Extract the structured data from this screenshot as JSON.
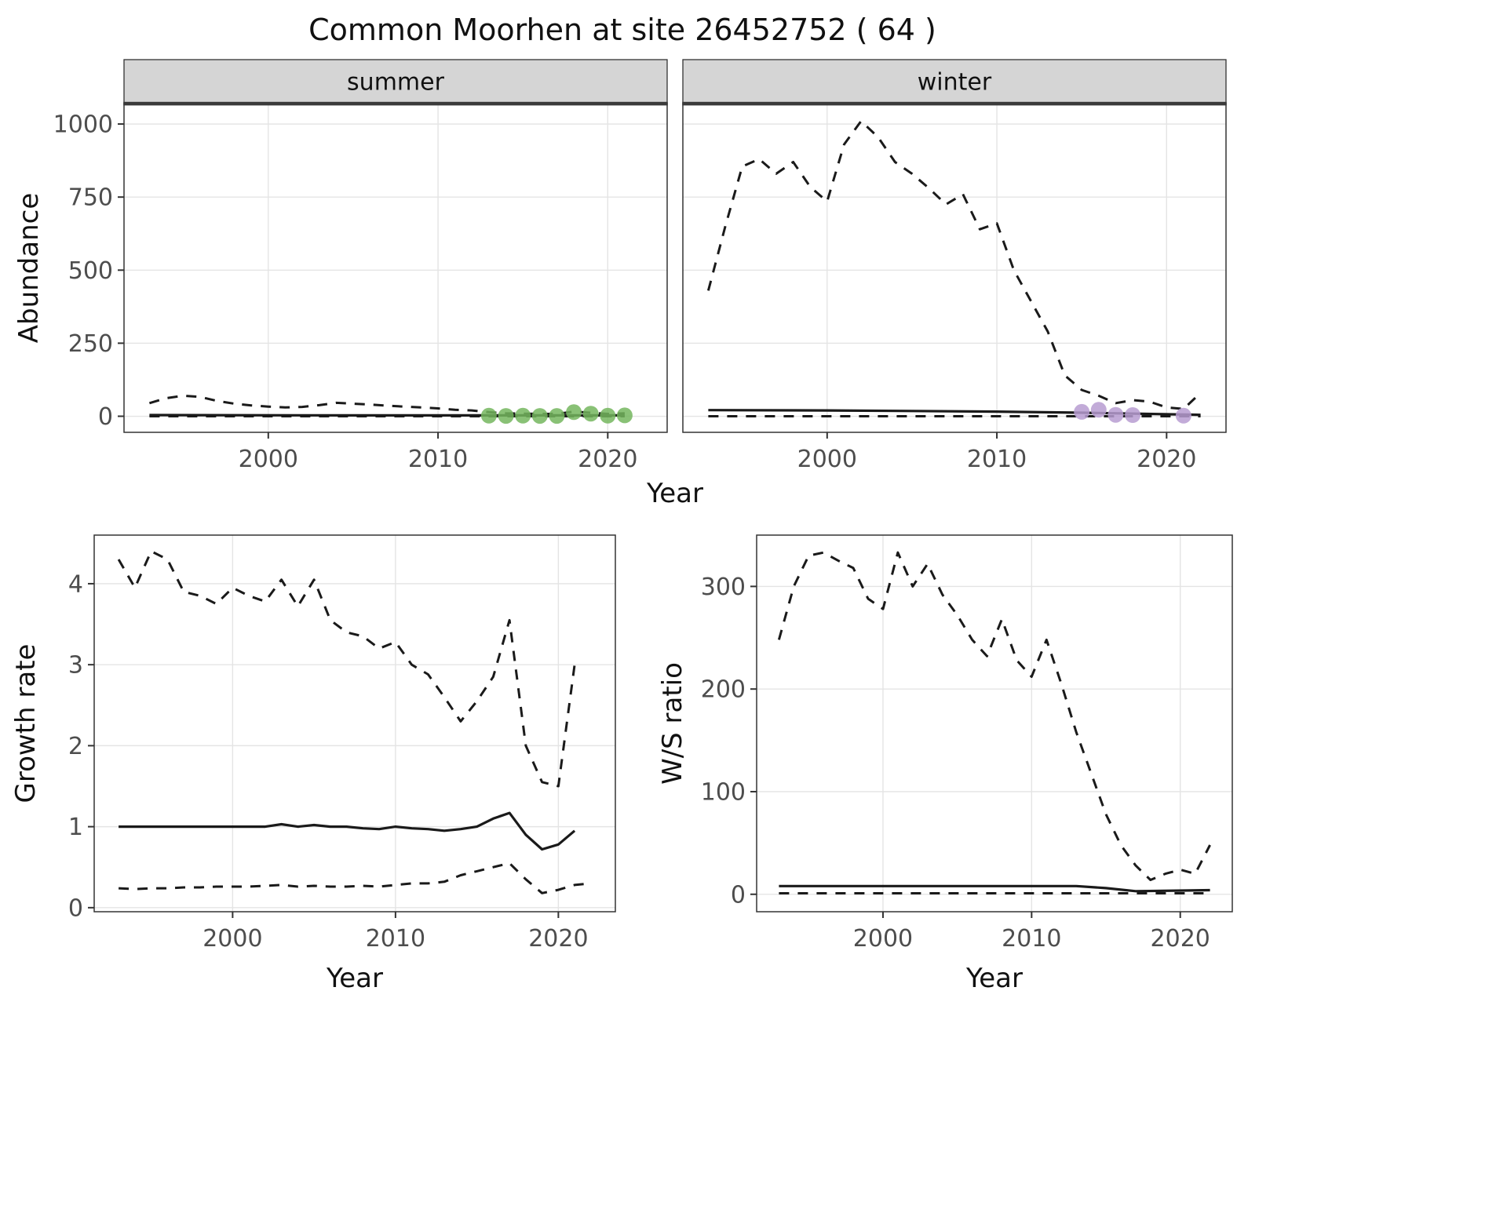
{
  "title": "Common Moorhen at site 26452752 ( 64 )",
  "colors": {
    "summer_points": "#74b65e",
    "winter_points": "#b79cd1",
    "line": "#1a1a1a",
    "strip_fill": "#d5d5d5",
    "strip_bar": "#3a3a3a",
    "grid": "#e4e4e4"
  },
  "chart_data": [
    {
      "id": "abundance",
      "type": "line",
      "xlabel": "Year",
      "ylabel": "Abundance",
      "x_domain": [
        1991.5,
        2023.5
      ],
      "y_domain": [
        -55,
        1070
      ],
      "x_ticks": [
        2000,
        2010,
        2020
      ],
      "y_ticks": [
        0,
        250,
        500,
        750,
        1000
      ],
      "grid": true,
      "legend": "none",
      "facets": [
        {
          "label": "summer",
          "series": [
            {
              "name": "upper-ci",
              "style": "dashed",
              "x": [
                1993,
                1994,
                1995,
                1996,
                1997,
                1998,
                1999,
                2000,
                2001,
                2002,
                2003,
                2004,
                2005,
                2006,
                2007,
                2008,
                2009,
                2010,
                2011,
                2012,
                2013,
                2014,
                2015,
                2016,
                2017,
                2018,
                2019,
                2020,
                2021
              ],
              "y": [
                45,
                62,
                70,
                66,
                52,
                43,
                37,
                33,
                30,
                32,
                38,
                46,
                43,
                40,
                36,
                33,
                30,
                27,
                22,
                20,
                14,
                10,
                9,
                8,
                8,
                16,
                12,
                8,
                10
              ]
            },
            {
              "name": "estimate",
              "style": "solid",
              "x": [
                1993,
                2005,
                2013,
                2021
              ],
              "y": [
                4,
                3,
                3,
                3
              ]
            },
            {
              "name": "lower-ci",
              "style": "dashed",
              "x": [
                1993,
                2021
              ],
              "y": [
                0,
                0
              ]
            },
            {
              "name": "observations",
              "style": "points",
              "color": "#74b65e",
              "x": [
                2013,
                2014,
                2015,
                2016,
                2017,
                2018,
                2019,
                2020,
                2021
              ],
              "y": [
                2,
                1,
                2,
                1,
                1,
                14,
                9,
                2,
                3
              ]
            }
          ]
        },
        {
          "label": "winter",
          "series": [
            {
              "name": "upper-ci",
              "style": "dashed",
              "x": [
                1993,
                1994,
                1995,
                1996,
                1997,
                1998,
                1999,
                2000,
                2001,
                2002,
                2003,
                2004,
                2005,
                2006,
                2007,
                2008,
                2009,
                2010,
                2011,
                2012,
                2013,
                2014,
                2015,
                2016,
                2017,
                2018,
                2019,
                2020,
                2021,
                2022
              ],
              "y": [
                430,
                650,
                855,
                880,
                830,
                870,
                785,
                735,
                930,
                1010,
                955,
                870,
                830,
                780,
                725,
                760,
                640,
                660,
                500,
                395,
                290,
                140,
                90,
                70,
                45,
                55,
                50,
                30,
                25,
                80
              ]
            },
            {
              "name": "estimate",
              "style": "solid",
              "x": [
                1993,
                2000,
                2005,
                2010,
                2015,
                2022
              ],
              "y": [
                21,
                20,
                18,
                16,
                12,
                5
              ]
            },
            {
              "name": "lower-ci",
              "style": "dashed",
              "x": [
                1993,
                2022
              ],
              "y": [
                0,
                0
              ]
            },
            {
              "name": "observations",
              "style": "points",
              "color": "#b79cd1",
              "x": [
                2015,
                2016,
                2017,
                2018,
                2021
              ],
              "y": [
                15,
                22,
                5,
                4,
                2
              ]
            }
          ]
        }
      ]
    },
    {
      "id": "growth",
      "type": "line",
      "xlabel": "Year",
      "ylabel": "Growth rate",
      "x_domain": [
        1991.5,
        2023.5
      ],
      "y_domain": [
        -0.05,
        4.6
      ],
      "x_ticks": [
        2000,
        2010,
        2020
      ],
      "y_ticks": [
        0,
        1,
        2,
        3,
        4
      ],
      "grid": true,
      "legend": "none",
      "facets": [
        {
          "label": "",
          "series": [
            {
              "name": "upper-ci",
              "style": "dashed",
              "x": [
                1993,
                1994,
                1995,
                1996,
                1997,
                1998,
                1999,
                2000,
                2001,
                2002,
                2003,
                2004,
                2005,
                2006,
                2007,
                2008,
                2009,
                2010,
                2011,
                2012,
                2013,
                2014,
                2015,
                2016,
                2017,
                2018,
                2019,
                2020,
                2021
              ],
              "y": [
                4.3,
                3.95,
                4.4,
                4.3,
                3.9,
                3.85,
                3.75,
                3.95,
                3.85,
                3.78,
                4.05,
                3.72,
                4.05,
                3.55,
                3.4,
                3.35,
                3.2,
                3.28,
                3.0,
                2.88,
                2.6,
                2.3,
                2.55,
                2.85,
                3.55,
                2.0,
                1.55,
                1.5,
                3.0
              ]
            },
            {
              "name": "estimate",
              "style": "solid",
              "x": [
                1993,
                1994,
                1995,
                1996,
                1997,
                1998,
                1999,
                2000,
                2001,
                2002,
                2003,
                2004,
                2005,
                2006,
                2007,
                2008,
                2009,
                2010,
                2011,
                2012,
                2013,
                2014,
                2015,
                2016,
                2017,
                2018,
                2019,
                2020,
                2021
              ],
              "y": [
                1.0,
                1.0,
                1.0,
                1.0,
                1.0,
                1.0,
                1.0,
                1.0,
                1.0,
                1.0,
                1.03,
                1.0,
                1.02,
                1.0,
                1.0,
                0.98,
                0.97,
                1.0,
                0.98,
                0.97,
                0.95,
                0.97,
                1.0,
                1.1,
                1.17,
                0.9,
                0.72,
                0.78,
                0.95
              ]
            },
            {
              "name": "lower-ci",
              "style": "dashed",
              "x": [
                1993,
                1994,
                1995,
                1996,
                1997,
                1998,
                1999,
                2000,
                2001,
                2002,
                2003,
                2004,
                2005,
                2006,
                2007,
                2008,
                2009,
                2010,
                2011,
                2012,
                2013,
                2014,
                2015,
                2016,
                2017,
                2018,
                2019,
                2020,
                2021,
                2022
              ],
              "y": [
                0.24,
                0.23,
                0.24,
                0.24,
                0.25,
                0.25,
                0.26,
                0.26,
                0.26,
                0.27,
                0.28,
                0.26,
                0.27,
                0.26,
                0.26,
                0.27,
                0.26,
                0.28,
                0.3,
                0.3,
                0.32,
                0.4,
                0.45,
                0.5,
                0.55,
                0.35,
                0.18,
                0.22,
                0.28,
                0.3
              ]
            }
          ]
        }
      ]
    },
    {
      "id": "ws",
      "type": "line",
      "xlabel": "Year",
      "ylabel": "W/S ratio",
      "x_domain": [
        1991.5,
        2023.5
      ],
      "y_domain": [
        -17,
        350
      ],
      "x_ticks": [
        2000,
        2010,
        2020
      ],
      "y_ticks": [
        0,
        100,
        200,
        300
      ],
      "grid": true,
      "legend": "none",
      "facets": [
        {
          "label": "",
          "series": [
            {
              "name": "upper-ci",
              "style": "dashed",
              "x": [
                1993,
                1994,
                1995,
                1996,
                1997,
                1998,
                1999,
                2000,
                2001,
                2002,
                2003,
                2004,
                2005,
                2006,
                2007,
                2008,
                2009,
                2010,
                2011,
                2012,
                2013,
                2014,
                2015,
                2016,
                2017,
                2018,
                2019,
                2020,
                2021,
                2022
              ],
              "y": [
                248,
                300,
                330,
                333,
                325,
                318,
                288,
                278,
                333,
                300,
                322,
                292,
                272,
                248,
                232,
                268,
                228,
                212,
                248,
                205,
                158,
                118,
                78,
                48,
                28,
                14,
                20,
                24,
                20,
                48
              ]
            },
            {
              "name": "estimate",
              "style": "solid",
              "x": [
                1993,
                2013,
                2015,
                2017,
                2022
              ],
              "y": [
                8,
                8,
                6,
                3,
                4
              ]
            },
            {
              "name": "lower-ci",
              "style": "dashed",
              "x": [
                1993,
                2022
              ],
              "y": [
                1,
                1
              ]
            }
          ]
        }
      ]
    }
  ]
}
